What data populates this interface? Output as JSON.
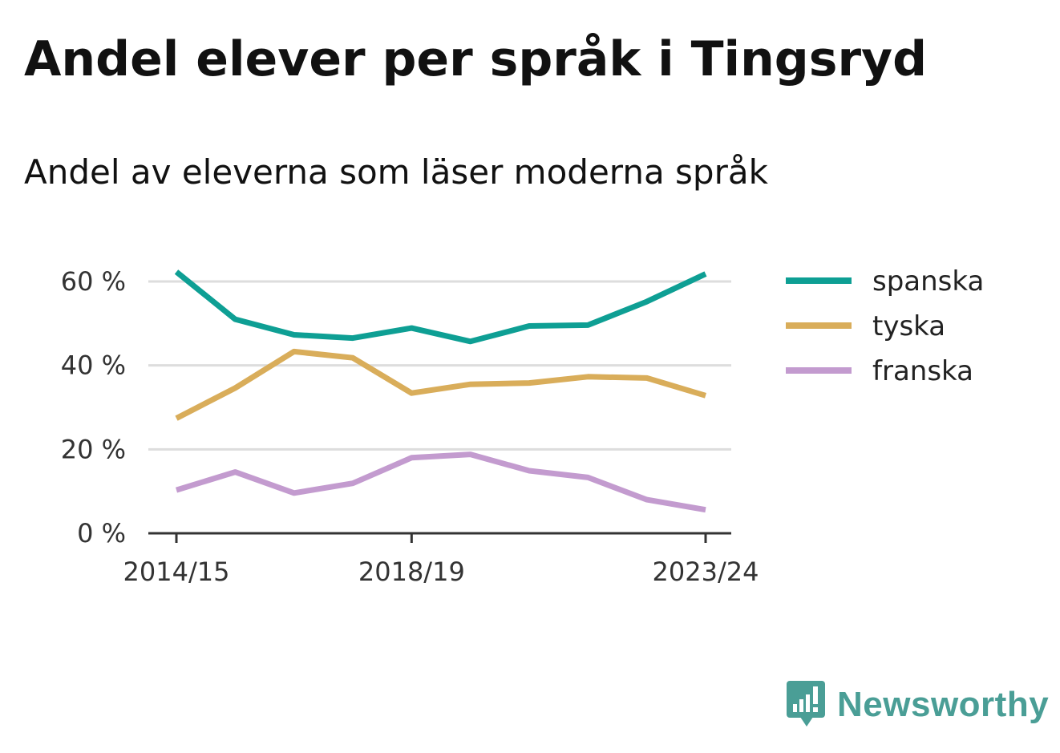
{
  "title": "Andel elever per språk i Tingsryd",
  "subtitle": "Andel av eleverna som läser moderna språk",
  "brand": {
    "name": "Newsworthy",
    "icon": "newsworthy-logo-icon",
    "color": "#4a9e96"
  },
  "chart_data": {
    "type": "line",
    "title": "Andel elever per språk i Tingsryd",
    "subtitle": "Andel av eleverna som läser moderna språk",
    "x": [
      "2014/15",
      "2015/16",
      "2016/17",
      "2017/18",
      "2018/19",
      "2019/20",
      "2020/21",
      "2021/22",
      "2022/23",
      "2023/24"
    ],
    "x_tick_labels": [
      "2014/15",
      "2018/19",
      "2023/24"
    ],
    "y_ticks": [
      0,
      20,
      40,
      60
    ],
    "y_tick_labels": [
      "0 %",
      "20 %",
      "40 %",
      "60 %"
    ],
    "ylim": [
      0,
      65
    ],
    "grid": true,
    "legend_position": "right",
    "series": [
      {
        "name": "spanska",
        "color": "#0e9f94",
        "values": [
          62.3,
          51.0,
          47.3,
          46.5,
          48.9,
          45.7,
          49.4,
          49.6,
          55.2,
          61.8
        ]
      },
      {
        "name": "tyska",
        "color": "#d9ad5a",
        "values": [
          27.4,
          34.6,
          43.3,
          41.8,
          33.4,
          35.5,
          35.8,
          37.3,
          37.0,
          32.8
        ]
      },
      {
        "name": "franska",
        "color": "#c39bcf",
        "values": [
          10.3,
          14.6,
          9.6,
          11.9,
          18.0,
          18.8,
          14.9,
          13.3,
          8.0,
          5.6
        ]
      }
    ]
  }
}
